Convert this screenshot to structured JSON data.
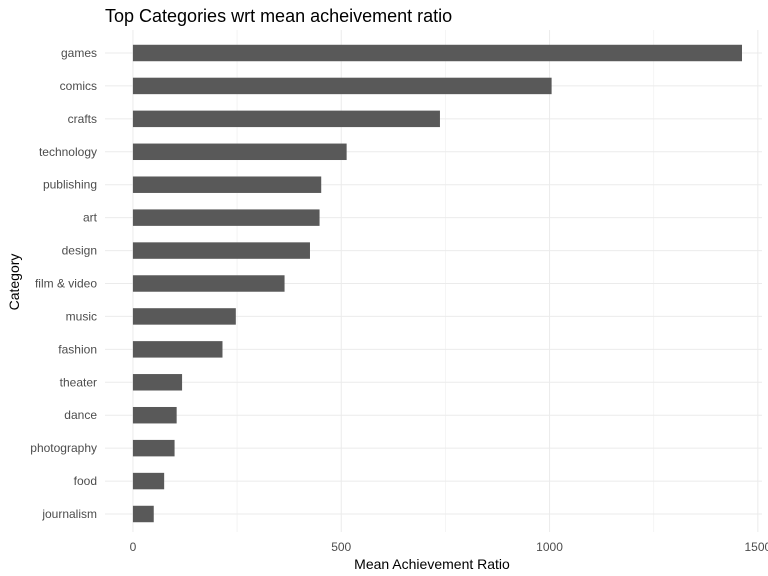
{
  "chart_data": {
    "type": "bar",
    "orientation": "horizontal",
    "title": "Top Categories wrt mean acheivement ratio",
    "xlabel": "Mean Achievement Ratio",
    "ylabel": "Category",
    "categories": [
      "games",
      "comics",
      "crafts",
      "technology",
      "publishing",
      "art",
      "design",
      "film & video",
      "music",
      "fashion",
      "theater",
      "dance",
      "photography",
      "food",
      "journalism"
    ],
    "values": [
      1462,
      1005,
      737,
      513,
      452,
      448,
      425,
      364,
      247,
      215,
      118,
      105,
      100,
      75,
      50
    ],
    "xlim": [
      -67,
      1510
    ],
    "xticks": [
      0,
      500,
      1000,
      1500
    ],
    "grid": true,
    "bar_color": "#595959",
    "grid_color": "#ebebeb"
  }
}
